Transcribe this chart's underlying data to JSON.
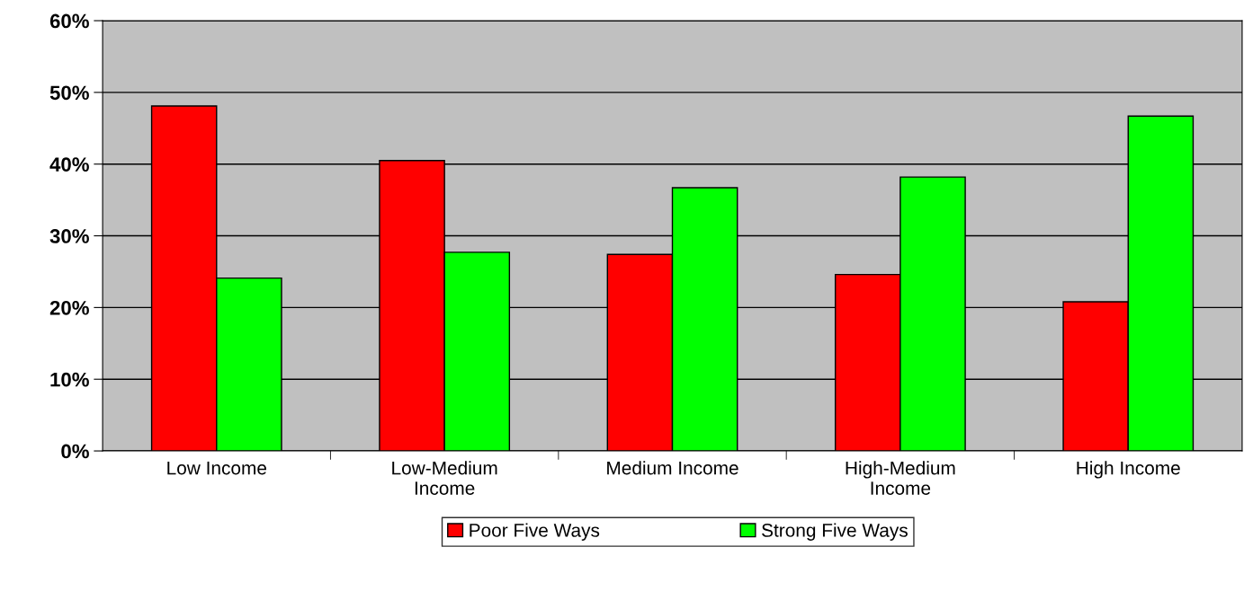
{
  "chart_data": {
    "type": "bar",
    "categories": [
      "Low Income",
      "Low-Medium\nIncome",
      "Medium Income",
      "High-Medium\nIncome",
      "High Income"
    ],
    "series": [
      {
        "name": "Poor Five Ways",
        "color": "#ff0000",
        "values": [
          48.1,
          40.5,
          27.4,
          24.6,
          20.8
        ]
      },
      {
        "name": "Strong Five Ways",
        "color": "#00ff00",
        "values": [
          24.1,
          27.7,
          36.7,
          38.2,
          46.7
        ]
      }
    ],
    "ylim": [
      0,
      60
    ],
    "yticks": [
      {
        "value": 0,
        "label": "0%"
      },
      {
        "value": 10,
        "label": "10%"
      },
      {
        "value": 20,
        "label": "20%"
      },
      {
        "value": 30,
        "label": "30%"
      },
      {
        "value": 40,
        "label": "40%"
      },
      {
        "value": 50,
        "label": "50%"
      },
      {
        "value": 60,
        "label": "60%"
      }
    ],
    "grid": "y",
    "legend": "bottom"
  }
}
